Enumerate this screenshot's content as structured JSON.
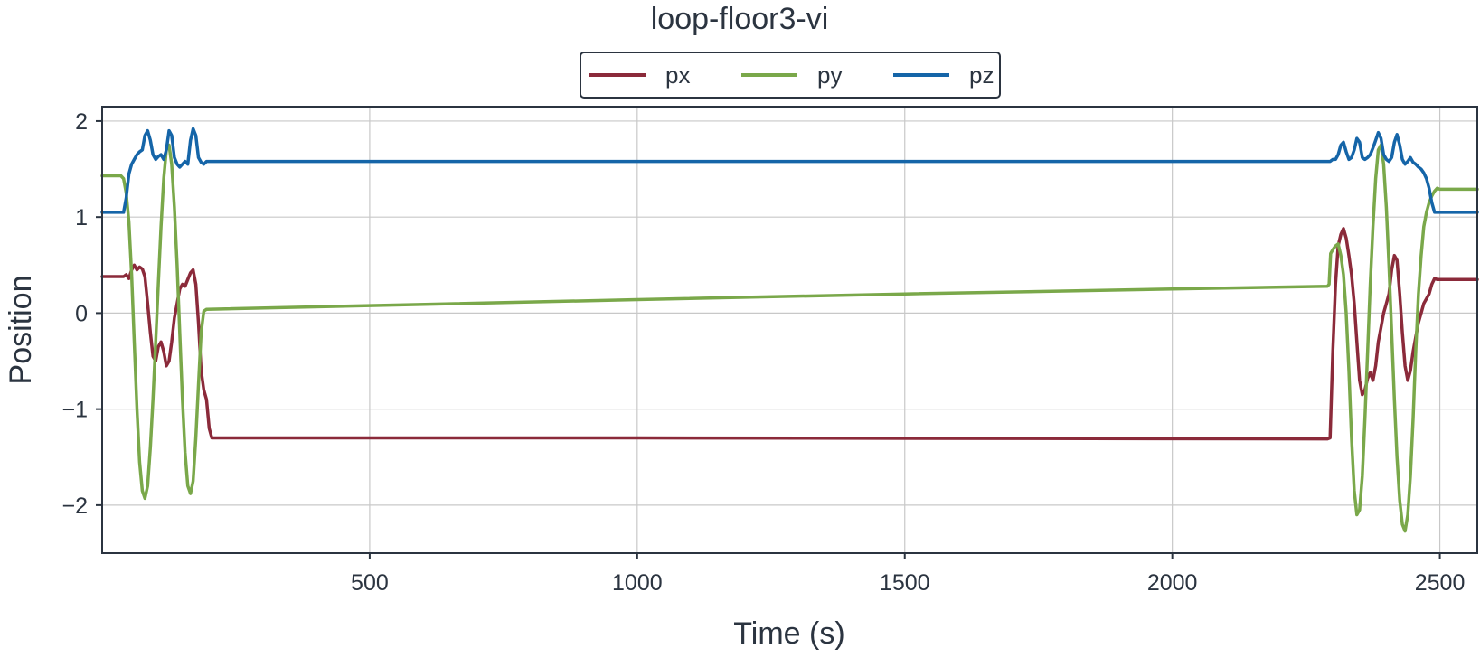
{
  "chart_data": {
    "type": "line",
    "title": "loop-floor3-vi",
    "xlabel": "Time (s)",
    "ylabel": "Position",
    "xlim": [
      0,
      2570
    ],
    "ylim": [
      -2.5,
      2.15
    ],
    "grid": true,
    "legend_position": "top-center",
    "x_ticks": [
      500,
      1000,
      1500,
      2000,
      2500
    ],
    "x_tick_labels": [
      "500",
      "1000",
      "1500",
      "2000",
      "2500"
    ],
    "y_ticks": [
      2,
      1,
      0,
      -1,
      -2
    ],
    "y_tick_labels": [
      "2",
      "1",
      "0",
      "−1",
      "−2"
    ],
    "series": [
      {
        "name": "px",
        "color": "#8b2a3a",
        "points": [
          [
            0,
            0.38
          ],
          [
            40,
            0.38
          ],
          [
            45,
            0.4
          ],
          [
            50,
            0.36
          ],
          [
            55,
            0.45
          ],
          [
            60,
            0.5
          ],
          [
            65,
            0.45
          ],
          [
            70,
            0.48
          ],
          [
            75,
            0.46
          ],
          [
            80,
            0.38
          ],
          [
            85,
            0.1
          ],
          [
            90,
            -0.2
          ],
          [
            95,
            -0.45
          ],
          [
            100,
            -0.5
          ],
          [
            105,
            -0.35
          ],
          [
            110,
            -0.3
          ],
          [
            115,
            -0.4
          ],
          [
            120,
            -0.55
          ],
          [
            125,
            -0.5
          ],
          [
            130,
            -0.3
          ],
          [
            135,
            -0.05
          ],
          [
            140,
            0.1
          ],
          [
            145,
            0.25
          ],
          [
            150,
            0.3
          ],
          [
            155,
            0.28
          ],
          [
            160,
            0.35
          ],
          [
            165,
            0.42
          ],
          [
            170,
            0.45
          ],
          [
            175,
            0.3
          ],
          [
            180,
            -0.1
          ],
          [
            185,
            -0.6
          ],
          [
            190,
            -0.8
          ],
          [
            195,
            -0.9
          ],
          [
            200,
            -1.2
          ],
          [
            205,
            -1.3
          ],
          [
            1000,
            -1.3
          ],
          [
            2290,
            -1.31
          ],
          [
            2295,
            -1.3
          ],
          [
            2300,
            -0.4
          ],
          [
            2305,
            0.3
          ],
          [
            2310,
            0.7
          ],
          [
            2315,
            0.82
          ],
          [
            2320,
            0.88
          ],
          [
            2325,
            0.78
          ],
          [
            2330,
            0.6
          ],
          [
            2335,
            0.4
          ],
          [
            2340,
            0.1
          ],
          [
            2345,
            -0.3
          ],
          [
            2350,
            -0.7
          ],
          [
            2355,
            -0.85
          ],
          [
            2360,
            -0.8
          ],
          [
            2365,
            -0.68
          ],
          [
            2370,
            -0.62
          ],
          [
            2375,
            -0.7
          ],
          [
            2380,
            -0.55
          ],
          [
            2385,
            -0.3
          ],
          [
            2390,
            -0.15
          ],
          [
            2395,
            0.0
          ],
          [
            2400,
            0.1
          ],
          [
            2405,
            0.2
          ],
          [
            2410,
            0.45
          ],
          [
            2415,
            0.6
          ],
          [
            2420,
            0.55
          ],
          [
            2425,
            0.2
          ],
          [
            2430,
            -0.2
          ],
          [
            2435,
            -0.55
          ],
          [
            2440,
            -0.7
          ],
          [
            2445,
            -0.6
          ],
          [
            2450,
            -0.4
          ],
          [
            2455,
            -0.25
          ],
          [
            2460,
            -0.1
          ],
          [
            2465,
            0.0
          ],
          [
            2470,
            0.1
          ],
          [
            2475,
            0.15
          ],
          [
            2480,
            0.2
          ],
          [
            2485,
            0.3
          ],
          [
            2490,
            0.36
          ],
          [
            2495,
            0.35
          ],
          [
            2570,
            0.35
          ]
        ]
      },
      {
        "name": "py",
        "color": "#7aa84a",
        "points": [
          [
            0,
            1.43
          ],
          [
            35,
            1.43
          ],
          [
            40,
            1.4
          ],
          [
            45,
            1.25
          ],
          [
            50,
            0.95
          ],
          [
            55,
            0.4
          ],
          [
            60,
            -0.3
          ],
          [
            65,
            -1.0
          ],
          [
            70,
            -1.55
          ],
          [
            75,
            -1.85
          ],
          [
            80,
            -1.93
          ],
          [
            85,
            -1.8
          ],
          [
            90,
            -1.4
          ],
          [
            95,
            -0.9
          ],
          [
            100,
            -0.3
          ],
          [
            105,
            0.3
          ],
          [
            110,
            0.9
          ],
          [
            115,
            1.4
          ],
          [
            120,
            1.7
          ],
          [
            125,
            1.75
          ],
          [
            130,
            1.55
          ],
          [
            135,
            1.1
          ],
          [
            140,
            0.5
          ],
          [
            145,
            -0.2
          ],
          [
            150,
            -0.9
          ],
          [
            155,
            -1.45
          ],
          [
            160,
            -1.8
          ],
          [
            165,
            -1.88
          ],
          [
            170,
            -1.75
          ],
          [
            175,
            -1.3
          ],
          [
            180,
            -0.75
          ],
          [
            185,
            -0.2
          ],
          [
            190,
            0.02
          ],
          [
            195,
            0.04
          ],
          [
            1000,
            0.14
          ],
          [
            1500,
            0.2
          ],
          [
            2000,
            0.25
          ],
          [
            2290,
            0.28
          ],
          [
            2293,
            0.3
          ],
          [
            2296,
            0.62
          ],
          [
            2300,
            0.66
          ],
          [
            2305,
            0.7
          ],
          [
            2310,
            0.72
          ],
          [
            2315,
            0.6
          ],
          [
            2320,
            0.4
          ],
          [
            2325,
            0.0
          ],
          [
            2330,
            -0.6
          ],
          [
            2335,
            -1.3
          ],
          [
            2340,
            -1.85
          ],
          [
            2345,
            -2.1
          ],
          [
            2350,
            -2.05
          ],
          [
            2355,
            -1.7
          ],
          [
            2360,
            -1.1
          ],
          [
            2365,
            -0.4
          ],
          [
            2370,
            0.3
          ],
          [
            2375,
            0.9
          ],
          [
            2380,
            1.4
          ],
          [
            2385,
            1.7
          ],
          [
            2390,
            1.75
          ],
          [
            2395,
            1.55
          ],
          [
            2400,
            1.1
          ],
          [
            2405,
            0.5
          ],
          [
            2410,
            -0.2
          ],
          [
            2415,
            -0.9
          ],
          [
            2420,
            -1.5
          ],
          [
            2425,
            -1.95
          ],
          [
            2430,
            -2.2
          ],
          [
            2435,
            -2.27
          ],
          [
            2440,
            -2.1
          ],
          [
            2445,
            -1.7
          ],
          [
            2450,
            -1.1
          ],
          [
            2455,
            -0.4
          ],
          [
            2460,
            0.2
          ],
          [
            2465,
            0.6
          ],
          [
            2470,
            0.9
          ],
          [
            2475,
            1.05
          ],
          [
            2480,
            1.15
          ],
          [
            2485,
            1.22
          ],
          [
            2490,
            1.27
          ],
          [
            2495,
            1.3
          ],
          [
            2500,
            1.29
          ],
          [
            2505,
            1.29
          ],
          [
            2570,
            1.29
          ]
        ]
      },
      {
        "name": "pz",
        "color": "#1565a8",
        "points": [
          [
            0,
            1.05
          ],
          [
            40,
            1.05
          ],
          [
            45,
            1.2
          ],
          [
            50,
            1.45
          ],
          [
            55,
            1.55
          ],
          [
            60,
            1.6
          ],
          [
            65,
            1.65
          ],
          [
            70,
            1.68
          ],
          [
            75,
            1.7
          ],
          [
            80,
            1.85
          ],
          [
            85,
            1.9
          ],
          [
            90,
            1.8
          ],
          [
            95,
            1.65
          ],
          [
            100,
            1.6
          ],
          [
            105,
            1.63
          ],
          [
            110,
            1.65
          ],
          [
            115,
            1.6
          ],
          [
            120,
            1.7
          ],
          [
            125,
            1.9
          ],
          [
            130,
            1.85
          ],
          [
            135,
            1.62
          ],
          [
            140,
            1.55
          ],
          [
            145,
            1.52
          ],
          [
            150,
            1.55
          ],
          [
            155,
            1.58
          ],
          [
            160,
            1.55
          ],
          [
            165,
            1.8
          ],
          [
            170,
            1.92
          ],
          [
            175,
            1.85
          ],
          [
            180,
            1.62
          ],
          [
            185,
            1.57
          ],
          [
            190,
            1.55
          ],
          [
            195,
            1.58
          ],
          [
            1000,
            1.58
          ],
          [
            2000,
            1.58
          ],
          [
            2290,
            1.58
          ],
          [
            2295,
            1.58
          ],
          [
            2300,
            1.6
          ],
          [
            2305,
            1.6
          ],
          [
            2310,
            1.65
          ],
          [
            2315,
            1.75
          ],
          [
            2320,
            1.78
          ],
          [
            2325,
            1.68
          ],
          [
            2330,
            1.6
          ],
          [
            2335,
            1.62
          ],
          [
            2340,
            1.7
          ],
          [
            2345,
            1.82
          ],
          [
            2350,
            1.78
          ],
          [
            2355,
            1.62
          ],
          [
            2360,
            1.6
          ],
          [
            2365,
            1.62
          ],
          [
            2370,
            1.65
          ],
          [
            2375,
            1.72
          ],
          [
            2380,
            1.8
          ],
          [
            2385,
            1.88
          ],
          [
            2390,
            1.82
          ],
          [
            2395,
            1.65
          ],
          [
            2400,
            1.6
          ],
          [
            2405,
            1.58
          ],
          [
            2410,
            1.62
          ],
          [
            2415,
            1.78
          ],
          [
            2420,
            1.86
          ],
          [
            2425,
            1.75
          ],
          [
            2430,
            1.6
          ],
          [
            2435,
            1.55
          ],
          [
            2440,
            1.58
          ],
          [
            2445,
            1.62
          ],
          [
            2450,
            1.57
          ],
          [
            2455,
            1.55
          ],
          [
            2460,
            1.52
          ],
          [
            2465,
            1.5
          ],
          [
            2470,
            1.46
          ],
          [
            2475,
            1.4
          ],
          [
            2480,
            1.3
          ],
          [
            2485,
            1.15
          ],
          [
            2490,
            1.05
          ],
          [
            2495,
            1.05
          ],
          [
            2570,
            1.05
          ]
        ]
      }
    ]
  }
}
